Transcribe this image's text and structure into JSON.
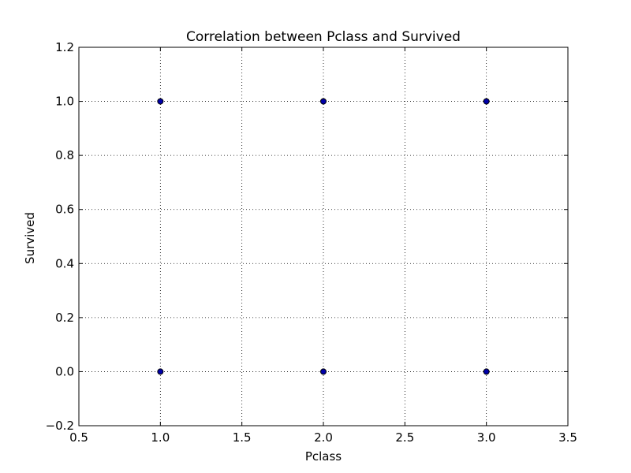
{
  "chart_data": {
    "type": "scatter",
    "title": "Correlation between Pclass and Survived",
    "xlabel": "Pclass",
    "ylabel": "Survived",
    "xlim": [
      0.5,
      3.5
    ],
    "ylim": [
      -0.2,
      1.2
    ],
    "xticks": [
      0.5,
      1.0,
      1.5,
      2.0,
      2.5,
      3.0,
      3.5
    ],
    "yticks": [
      -0.2,
      0.0,
      0.2,
      0.4,
      0.6,
      0.8,
      1.0,
      1.2
    ],
    "xtick_labels": [
      "0.5",
      "1.0",
      "1.5",
      "2.0",
      "2.5",
      "3.0",
      "3.5"
    ],
    "ytick_labels": [
      "−0.2",
      "0.0",
      "0.2",
      "0.4",
      "0.6",
      "0.8",
      "1.0",
      "1.2"
    ],
    "grid": true,
    "marker_color": "#0000aa",
    "points": [
      {
        "x": 1,
        "y": 0
      },
      {
        "x": 1,
        "y": 1
      },
      {
        "x": 2,
        "y": 0
      },
      {
        "x": 2,
        "y": 1
      },
      {
        "x": 3,
        "y": 0
      },
      {
        "x": 3,
        "y": 1
      }
    ]
  }
}
